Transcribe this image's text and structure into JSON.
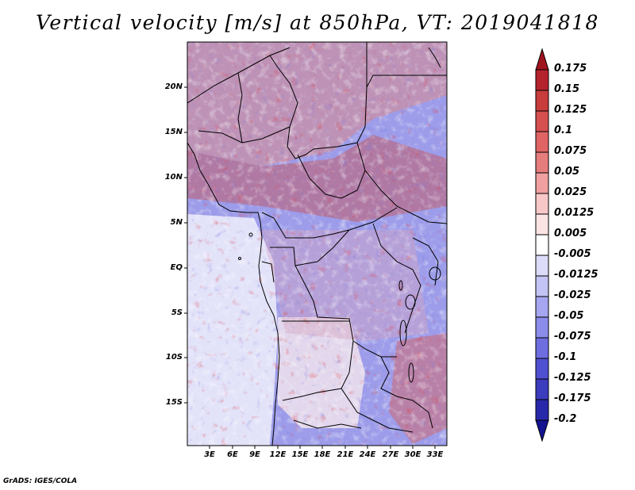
{
  "title": "Vertical velocity [m/s] at 850hPa, VT: 2019041818",
  "credit": "GrADS: IGES/COLA",
  "map": {
    "region": "Central Africa",
    "variable": "Vertical velocity",
    "units": "m/s",
    "level": "850hPa",
    "valid_time": "2019041818",
    "lat_labels": [
      "20N",
      "15N",
      "10N",
      "5N",
      "EQ",
      "5S",
      "10S",
      "15S"
    ],
    "lon_labels": [
      "3E",
      "6E",
      "9E",
      "12E",
      "15E",
      "18E",
      "21E",
      "24E",
      "27E",
      "30E",
      "33E"
    ]
  },
  "colorbar": {
    "labels": [
      "0.175",
      "0.15",
      "0.125",
      "0.1",
      "0.075",
      "0.05",
      "0.025",
      "0.0125",
      "0.005",
      "-0.005",
      "-0.0125",
      "-0.025",
      "-0.05",
      "-0.075",
      "-0.1",
      "-0.125",
      "-0.175",
      "-0.2"
    ],
    "colors": [
      "#a0141e",
      "#b4232d",
      "#c83c3c",
      "#d75050",
      "#e06464",
      "#e67d7d",
      "#f0a0a0",
      "#f8c8c8",
      "#fde4e4",
      "#ffffff",
      "#dcdcfa",
      "#c3c3f5",
      "#a5a5f0",
      "#8c8ceb",
      "#6e6ee1",
      "#5050d2",
      "#3c3cbe",
      "#2828aa",
      "#141491"
    ]
  }
}
